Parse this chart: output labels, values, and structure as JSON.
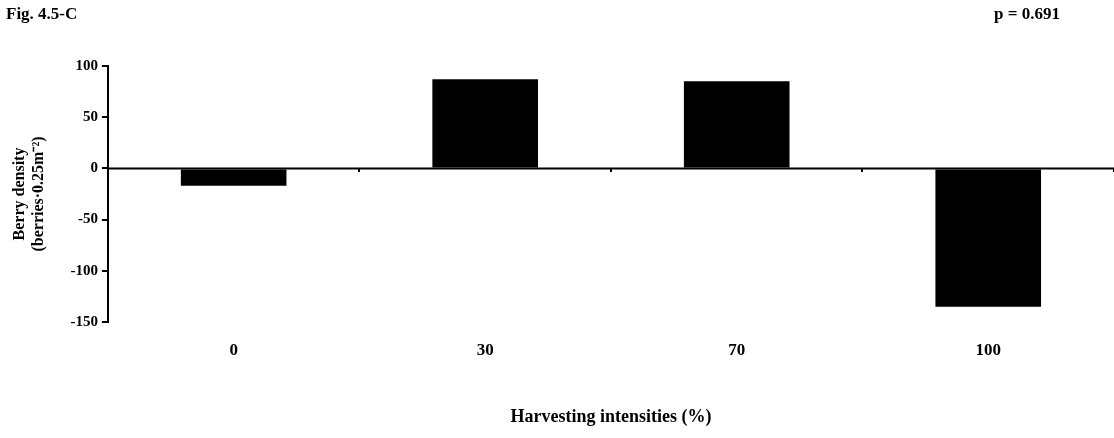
{
  "chart_data": {
    "type": "bar",
    "title": "Fig. 4.5-C",
    "annotations": [
      "p = 0.691"
    ],
    "xlabel": "Harvesting intensities (%)",
    "ylabel": "Berry density\n(berries·0.25m⁻²)",
    "categories": [
      "0",
      "30",
      "70",
      "100"
    ],
    "values": [
      -17,
      87,
      85,
      -135
    ],
    "color": "#000000",
    "ylim": [
      -150,
      100
    ],
    "yticks": [
      -150,
      -100,
      -50,
      0,
      50,
      100
    ],
    "grid": false,
    "ref_lines": [
      {
        "axis": "y",
        "value": 0,
        "color": "#000000"
      }
    ],
    "legend": false
  }
}
